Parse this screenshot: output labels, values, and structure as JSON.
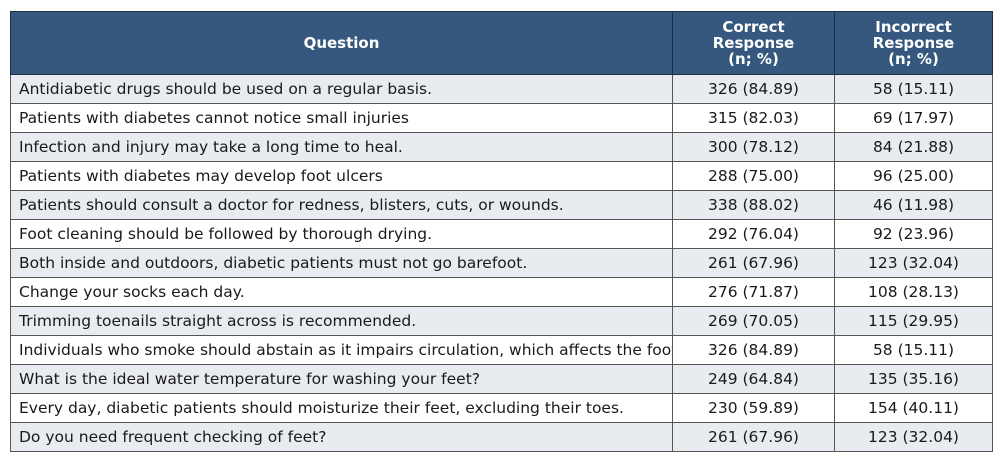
{
  "header": {
    "question": "Question",
    "correct": [
      "Correct",
      "Response",
      "(n; %)"
    ],
    "incorrect": [
      "Incorrect",
      "Response",
      "(n; %)"
    ]
  },
  "rows": [
    {
      "question": "Antidiabetic drugs should be used on a regular basis.",
      "correct": "326 (84.89)",
      "incorrect": "58 (15.11)"
    },
    {
      "question": "Patients with diabetes cannot notice small injuries",
      "correct": "315 (82.03)",
      "incorrect": "69 (17.97)"
    },
    {
      "question": "Infection and injury may take a long time to heal.",
      "correct": "300 (78.12)",
      "incorrect": "84 (21.88)"
    },
    {
      "question": "Patients with diabetes may develop foot ulcers",
      "correct": "288 (75.00)",
      "incorrect": "96 (25.00)"
    },
    {
      "question": "Patients should consult a doctor for redness, blisters, cuts, or wounds.",
      "correct": "338 (88.02)",
      "incorrect": "46 (11.98)"
    },
    {
      "question": "Foot cleaning should be followed by thorough drying.",
      "correct": "292 (76.04)",
      "incorrect": "92 (23.96)"
    },
    {
      "question": "Both inside and outdoors, diabetic patients must not go barefoot.",
      "correct": "261 (67.96)",
      "incorrect": "123 (32.04)"
    },
    {
      "question": "Change your socks each day.",
      "correct": "276 (71.87)",
      "incorrect": "108 (28.13)"
    },
    {
      "question": "Trimming toenails straight across is recommended.",
      "correct": "269 (70.05)",
      "incorrect": "115 (29.95)"
    },
    {
      "question": "Individuals who smoke should abstain as it impairs circulation, which affects the foot.",
      "correct": "326 (84.89)",
      "incorrect": "58 (15.11)"
    },
    {
      "question": "What is the ideal water temperature for washing your feet?",
      "correct": "249 (64.84)",
      "incorrect": "135 (35.16)"
    },
    {
      "question": "Every day, diabetic patients should moisturize their feet, excluding their toes.",
      "correct": "230 (59.89)",
      "incorrect": "154 (40.11)"
    },
    {
      "question": "Do you need frequent checking of feet?",
      "correct": "261 (67.96)",
      "incorrect": "123 (32.04)"
    }
  ],
  "colors": {
    "header_bg": "#37587e",
    "header_text": "#ffffff",
    "row_alt_bg": "#e8ebef",
    "border": "#555555"
  }
}
